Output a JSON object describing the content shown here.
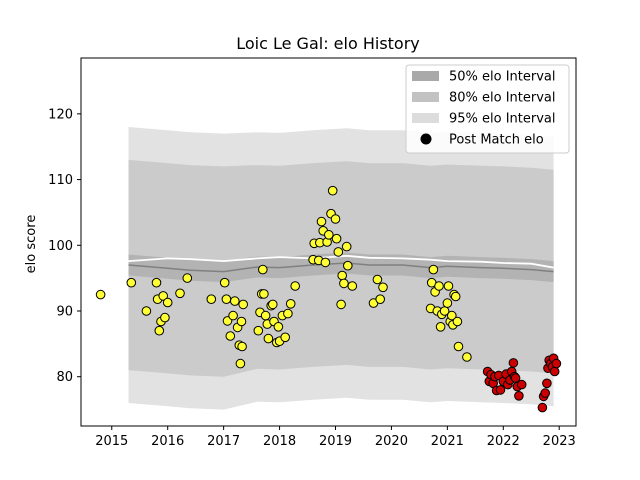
{
  "chart_data": {
    "type": "scatter",
    "title": "Loic Le Gal: elo History",
    "xlabel": "",
    "ylabel": "elo score",
    "xlim": [
      2014.45,
      2023.3
    ],
    "ylim": [
      72.5,
      128.5
    ],
    "x_ticks": [
      "2015",
      "2016",
      "2017",
      "2018",
      "2019",
      "2020",
      "2021",
      "2022",
      "2023"
    ],
    "y_ticks": [
      "80",
      "90",
      "100",
      "110",
      "120"
    ],
    "grid": false,
    "legend_position": "top-right",
    "legend": [
      {
        "label": "50% elo Interval",
        "kind": "band",
        "color": "#a9a9a9"
      },
      {
        "label": "80% elo Interval",
        "kind": "band",
        "color": "#c2c2c2"
      },
      {
        "label": "95% elo Interval",
        "kind": "band",
        "color": "#dcdcdc"
      },
      {
        "label": "Post Match elo",
        "kind": "marker",
        "color": "#000000"
      }
    ],
    "bands": {
      "x": [
        2015.3,
        2016.0,
        2016.4,
        2017.0,
        2017.6,
        2018.0,
        2018.6,
        2019.2,
        2019.6,
        2020.2,
        2020.7,
        2021.0,
        2021.6,
        2022.0,
        2022.5,
        2022.9
      ],
      "center": [
        97.0,
        96.5,
        96.2,
        96.0,
        96.7,
        96.6,
        97.0,
        97.3,
        97.0,
        97.0,
        96.6,
        96.8,
        96.6,
        96.5,
        96.3,
        96.0
      ],
      "half_width_50": [
        1.6,
        1.6,
        1.6,
        1.6,
        1.6,
        1.6,
        1.6,
        1.6,
        1.6,
        1.6,
        1.6,
        1.6,
        1.6,
        1.6,
        1.6,
        1.6
      ],
      "half_width_80": [
        16.0,
        16.0,
        16.0,
        16.0,
        15.5,
        15.5,
        15.5,
        15.5,
        15.5,
        15.5,
        15.5,
        15.5,
        15.5,
        15.5,
        15.5,
        15.5
      ],
      "half_width_95": [
        21.0,
        21.0,
        21.0,
        21.0,
        20.5,
        20.5,
        20.5,
        20.5,
        20.5,
        20.5,
        20.5,
        20.5,
        20.5,
        20.5,
        20.5,
        20.5
      ],
      "white_line": [
        97.6,
        98.0,
        97.9,
        97.6,
        98.0,
        98.2,
        98.0,
        98.4,
        98.1,
        98.0,
        97.8,
        97.6,
        97.5,
        97.3,
        97.2,
        96.6
      ],
      "colors": {
        "band95": "#e2e2e2",
        "band80": "#cbcbcb",
        "band50": "#b3b3b3",
        "center_line": "#808080",
        "white_line": "#ffffff"
      }
    },
    "series": [
      {
        "name": "Post Match elo",
        "color": "#ffff33",
        "points": [
          [
            2014.8,
            92.5
          ],
          [
            2015.35,
            94.3
          ],
          [
            2015.62,
            90.0
          ],
          [
            2015.8,
            94.3
          ],
          [
            2015.82,
            91.8
          ],
          [
            2015.85,
            87.0
          ],
          [
            2015.88,
            88.4
          ],
          [
            2015.92,
            92.3
          ],
          [
            2015.95,
            89.0
          ],
          [
            2016.0,
            91.3
          ],
          [
            2016.22,
            92.7
          ],
          [
            2016.35,
            95.0
          ],
          [
            2016.78,
            91.8
          ],
          [
            2017.02,
            94.3
          ],
          [
            2017.05,
            91.8
          ],
          [
            2017.07,
            88.5
          ],
          [
            2017.12,
            86.2
          ],
          [
            2017.17,
            89.3
          ],
          [
            2017.2,
            91.5
          ],
          [
            2017.25,
            87.5
          ],
          [
            2017.28,
            84.8
          ],
          [
            2017.3,
            82.0
          ],
          [
            2017.32,
            88.4
          ],
          [
            2017.33,
            84.6
          ],
          [
            2017.35,
            91.0
          ],
          [
            2017.62,
            87.0
          ],
          [
            2017.65,
            89.8
          ],
          [
            2017.68,
            92.6
          ],
          [
            2017.7,
            96.3
          ],
          [
            2017.72,
            92.6
          ],
          [
            2017.75,
            89.3
          ],
          [
            2017.78,
            88.0
          ],
          [
            2017.8,
            85.8
          ],
          [
            2017.85,
            90.8
          ],
          [
            2017.88,
            91.0
          ],
          [
            2017.9,
            88.4
          ],
          [
            2017.95,
            85.2
          ],
          [
            2017.98,
            87.6
          ],
          [
            2018.0,
            85.4
          ],
          [
            2018.05,
            89.3
          ],
          [
            2018.1,
            86.0
          ],
          [
            2018.15,
            89.6
          ],
          [
            2018.2,
            91.1
          ],
          [
            2018.28,
            93.8
          ],
          [
            2018.6,
            97.8
          ],
          [
            2018.62,
            100.3
          ],
          [
            2018.7,
            97.7
          ],
          [
            2018.72,
            100.4
          ],
          [
            2018.75,
            103.6
          ],
          [
            2018.78,
            102.2
          ],
          [
            2018.82,
            97.4
          ],
          [
            2018.85,
            100.5
          ],
          [
            2018.88,
            101.6
          ],
          [
            2018.92,
            104.8
          ],
          [
            2018.95,
            108.3
          ],
          [
            2019.0,
            104.0
          ],
          [
            2019.02,
            101.0
          ],
          [
            2019.05,
            99.0
          ],
          [
            2019.1,
            91.0
          ],
          [
            2019.12,
            95.4
          ],
          [
            2019.15,
            94.2
          ],
          [
            2019.2,
            99.8
          ],
          [
            2019.22,
            96.9
          ],
          [
            2019.3,
            93.8
          ],
          [
            2019.68,
            91.2
          ],
          [
            2019.75,
            94.8
          ],
          [
            2019.8,
            91.8
          ],
          [
            2019.85,
            93.6
          ],
          [
            2020.7,
            90.4
          ],
          [
            2020.72,
            94.3
          ],
          [
            2020.75,
            96.3
          ],
          [
            2020.78,
            92.9
          ],
          [
            2020.82,
            90.0
          ],
          [
            2020.85,
            93.8
          ],
          [
            2020.88,
            87.6
          ],
          [
            2020.9,
            89.5
          ],
          [
            2020.95,
            90.0
          ],
          [
            2021.0,
            91.2
          ],
          [
            2021.02,
            93.8
          ],
          [
            2021.05,
            88.4
          ],
          [
            2021.08,
            89.3
          ],
          [
            2021.1,
            87.9
          ],
          [
            2021.12,
            92.5
          ],
          [
            2021.15,
            92.2
          ],
          [
            2021.18,
            88.4
          ],
          [
            2021.2,
            84.6
          ],
          [
            2021.35,
            83.0
          ]
        ]
      },
      {
        "name": "Post Match elo",
        "color": "#cc0000",
        "points": [
          [
            2021.72,
            80.8
          ],
          [
            2021.75,
            79.3
          ],
          [
            2021.78,
            80.3
          ],
          [
            2021.82,
            79.0
          ],
          [
            2021.85,
            80.0
          ],
          [
            2021.88,
            77.9
          ],
          [
            2021.92,
            80.2
          ],
          [
            2021.95,
            78.0
          ],
          [
            2022.0,
            79.3
          ],
          [
            2022.05,
            80.4
          ],
          [
            2022.08,
            78.8
          ],
          [
            2022.12,
            79.5
          ],
          [
            2022.15,
            80.8
          ],
          [
            2022.18,
            82.1
          ],
          [
            2022.2,
            80.0
          ],
          [
            2022.22,
            79.8
          ],
          [
            2022.25,
            78.5
          ],
          [
            2022.28,
            77.1
          ],
          [
            2022.33,
            78.8
          ],
          [
            2022.7,
            75.3
          ],
          [
            2022.72,
            77.0
          ],
          [
            2022.75,
            77.5
          ],
          [
            2022.78,
            79.0
          ],
          [
            2022.8,
            81.3
          ],
          [
            2022.82,
            82.5
          ],
          [
            2022.85,
            82.0
          ],
          [
            2022.88,
            81.5
          ],
          [
            2022.9,
            82.8
          ],
          [
            2022.92,
            80.8
          ],
          [
            2022.95,
            82.0
          ]
        ]
      }
    ]
  }
}
